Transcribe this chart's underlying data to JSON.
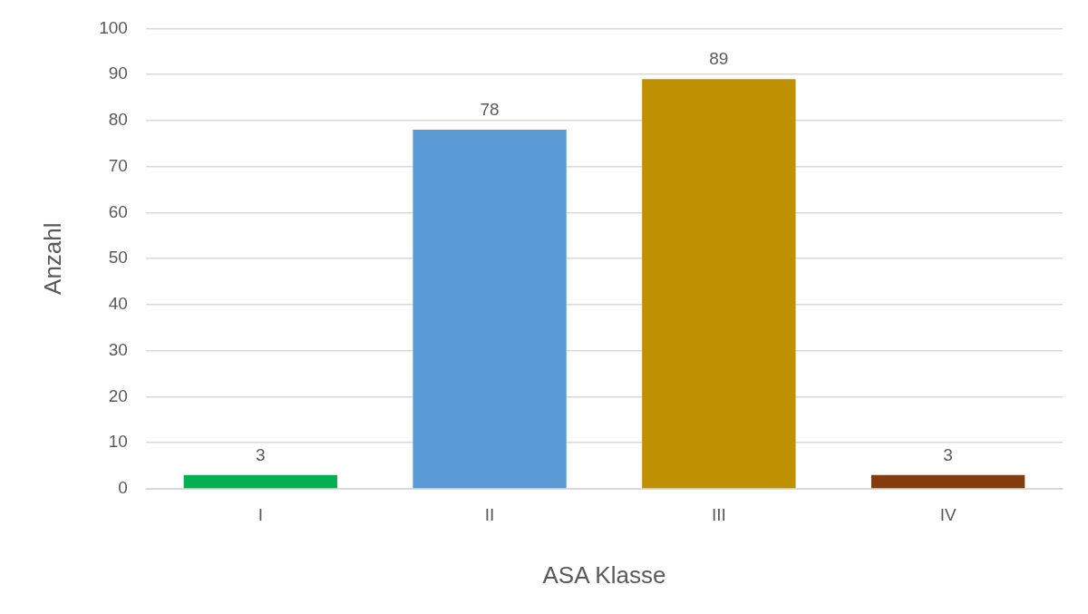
{
  "chart_data": {
    "type": "bar",
    "xlabel": "ASA Klasse",
    "ylabel": "Anzahl",
    "categories": [
      "I",
      "II",
      "III",
      "IV"
    ],
    "values": [
      3,
      78,
      89,
      3
    ],
    "colors": [
      "#00b050",
      "#5b9bd5",
      "#bf9000",
      "#843c0c"
    ],
    "ylim": [
      0,
      100
    ],
    "yticks": [
      0,
      10,
      20,
      30,
      40,
      50,
      60,
      70,
      80,
      90,
      100
    ],
    "grid": "y",
    "data_labels": true,
    "legend": false
  }
}
